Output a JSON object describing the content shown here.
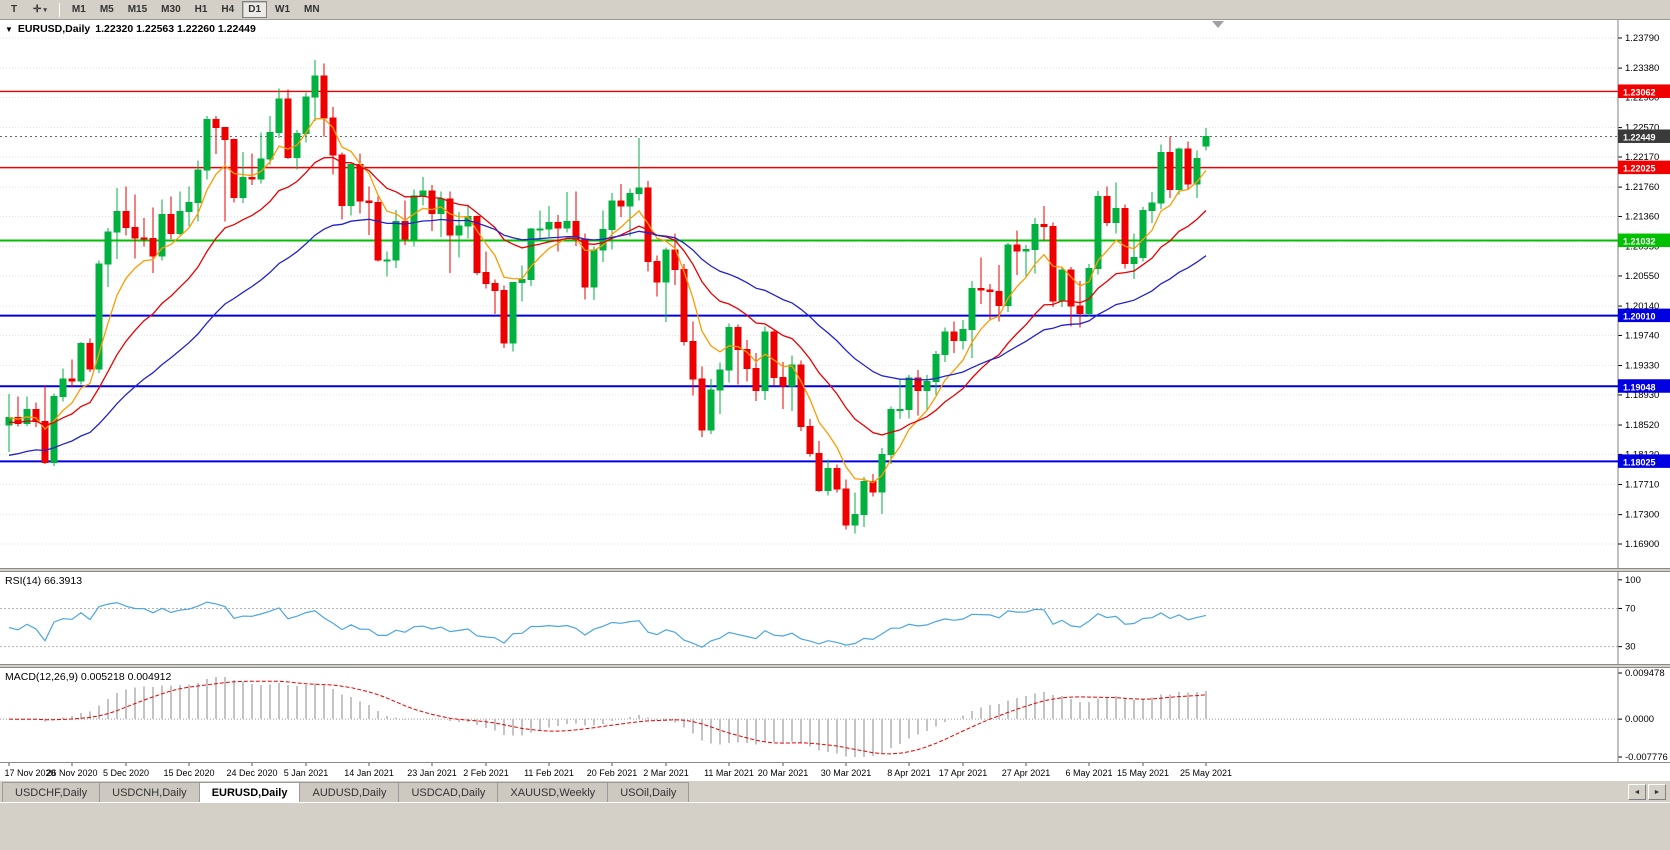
{
  "toolbar": {
    "t_button_label": "T",
    "timeframes": [
      "M1",
      "M5",
      "M15",
      "M30",
      "H1",
      "H4",
      "D1",
      "W1",
      "MN"
    ],
    "active_timeframe": "D1"
  },
  "icons": {
    "symbol_dropdown": "▼",
    "crosshair_tool": "✛",
    "tool_dropdown": "▾",
    "tab_scroll_left": "◄",
    "tab_scroll_right": "►"
  },
  "header": {
    "symbol": "EURUSD,Daily",
    "ohlc": "1.22320 1.22563 1.22260 1.22449"
  },
  "chart_data": {
    "type": "candlestick",
    "symbol": "EURUSD",
    "timeframe": "Daily",
    "colors": {
      "up": "#00b140",
      "down": "#ee0000",
      "ma_fast": "#ff9a00",
      "ma_mid": "#e80000",
      "ma_slow": "#2222cc",
      "rsi": "#4da6e0",
      "macd_hist": "#c4c4c4",
      "macd_signal": "#e80000",
      "grid": "#e2e2e2",
      "axis_border": "#808080"
    },
    "price_ticks": [
      "1.23790",
      "1.23380",
      "1.22980",
      "1.22570",
      "1.22170",
      "1.21760",
      "1.21360",
      "1.20950",
      "1.20550",
      "1.20140",
      "1.19740",
      "1.19330",
      "1.18930",
      "1.18520",
      "1.18120",
      "1.17710",
      "1.17300",
      "1.16900"
    ],
    "date_labels": [
      "17 Nov 2020",
      "26 Nov 2020",
      "5 Dec 2020",
      "15 Dec 2020",
      "24 Dec 2020",
      "5 Jan 2021",
      "14 Jan 2021",
      "23 Jan 2021",
      "2 Feb 2021",
      "11 Feb 2021",
      "20 Feb 2021",
      "2 Mar 2021",
      "11 Mar 2021",
      "20 Mar 2021",
      "30 Mar 2021",
      "8 Apr 2021",
      "17 Apr 2021",
      "27 Apr 2021",
      "6 May 2021",
      "15 May 2021",
      "25 May 2021"
    ],
    "hlines": [
      {
        "price": 1.23062,
        "label": "1.23062",
        "color": "#f00000",
        "width": 1.4
      },
      {
        "price": 1.22025,
        "label": "1.22025",
        "color": "#f00000",
        "width": 1.4
      },
      {
        "price": 1.21032,
        "label": "1.21032",
        "color": "#00c000",
        "width": 2
      },
      {
        "price": 1.2001,
        "label": "1.20010",
        "color": "#0000e0",
        "width": 2
      },
      {
        "price": 1.19048,
        "label": "1.19048",
        "color": "#0000e0",
        "width": 2
      },
      {
        "price": 1.18025,
        "label": "1.18025",
        "color": "#0000e0",
        "width": 2
      }
    ],
    "current_price": {
      "value": 1.22449,
      "label": "1.22449",
      "badge_color": "#3a3a3a"
    },
    "moving_averages": [
      {
        "name": "ma-fast",
        "period": 7,
        "color": "#ff9a00",
        "seed": 1.1862
      },
      {
        "name": "ma-mid",
        "period": 18,
        "color": "#e80000",
        "seed": 1.1855
      },
      {
        "name": "ma-slow",
        "period": 38,
        "color": "#2222cc",
        "seed": 1.1808
      }
    ],
    "rsi": {
      "label": "RSI(14) 66.3913",
      "period": 14,
      "levels": [
        "100",
        "70",
        "30"
      ],
      "level_values": [
        100,
        70,
        30
      ],
      "color": "#4da6e0"
    },
    "macd": {
      "label": "MACD(12,26,9) 0.005218 0.004912",
      "fast": 12,
      "slow": 26,
      "signal": 9,
      "axis_labels": [
        "0.009478",
        "0.0000",
        "-0.007776"
      ],
      "axis_values": [
        0.009478,
        0,
        -0.007776
      ]
    },
    "candles": [
      [
        1.1852,
        1.1894,
        1.1815,
        1.1862
      ],
      [
        1.1862,
        1.1891,
        1.185,
        1.1854
      ],
      [
        1.1854,
        1.1891,
        1.1851,
        1.1873
      ],
      [
        1.1873,
        1.1883,
        1.1849,
        1.1857
      ],
      [
        1.1857,
        1.1906,
        1.1799,
        1.1801
      ],
      [
        1.1801,
        1.1895,
        1.1796,
        1.1891
      ],
      [
        1.1891,
        1.1929,
        1.1884,
        1.1915
      ],
      [
        1.1915,
        1.1941,
        1.1903,
        1.1912
      ],
      [
        1.1912,
        1.1965,
        1.1907,
        1.1963
      ],
      [
        1.1963,
        1.197,
        1.1924,
        1.1928
      ],
      [
        1.1928,
        1.2076,
        1.1923,
        1.2071
      ],
      [
        1.2071,
        1.212,
        1.204,
        1.2115
      ],
      [
        1.2115,
        1.2175,
        1.2078,
        1.2143
      ],
      [
        1.2143,
        1.2177,
        1.211,
        1.2121
      ],
      [
        1.2121,
        1.2166,
        1.2079,
        1.2107
      ],
      [
        1.2107,
        1.2134,
        1.2095,
        1.2106
      ],
      [
        1.2106,
        1.2148,
        1.2059,
        1.2082
      ],
      [
        1.2082,
        1.2159,
        1.2076,
        1.2139
      ],
      [
        1.2139,
        1.2163,
        1.2105,
        1.2113
      ],
      [
        1.2113,
        1.217,
        1.2111,
        1.2143
      ],
      [
        1.2143,
        1.2177,
        1.2123,
        1.2155
      ],
      [
        1.2155,
        1.2212,
        1.2129,
        1.2199
      ],
      [
        1.2199,
        1.2273,
        1.2186,
        1.2268
      ],
      [
        1.2268,
        1.2273,
        1.2221,
        1.2257
      ],
      [
        1.2257,
        1.2258,
        1.2129,
        1.2241
      ],
      [
        1.2241,
        1.2242,
        1.2155,
        1.2162
      ],
      [
        1.2162,
        1.2224,
        1.2154,
        1.2189
      ],
      [
        1.2189,
        1.2222,
        1.2179,
        1.2187
      ],
      [
        1.2187,
        1.225,
        1.2181,
        1.2214
      ],
      [
        1.2214,
        1.2273,
        1.2207,
        1.225
      ],
      [
        1.225,
        1.231,
        1.2243,
        1.2296
      ],
      [
        1.2296,
        1.2309,
        1.2214,
        1.2216
      ],
      [
        1.2216,
        1.2254,
        1.22,
        1.2249
      ],
      [
        1.2249,
        1.2305,
        1.2237,
        1.2299
      ],
      [
        1.2299,
        1.2349,
        1.2266,
        1.2327
      ],
      [
        1.2327,
        1.2344,
        1.2245,
        1.227
      ],
      [
        1.227,
        1.2285,
        1.2193,
        1.222
      ],
      [
        1.222,
        1.2223,
        1.2132,
        1.2151
      ],
      [
        1.2151,
        1.2208,
        1.2137,
        1.2207
      ],
      [
        1.2207,
        1.2222,
        1.214,
        1.2157
      ],
      [
        1.2157,
        1.2177,
        1.2111,
        1.2155
      ],
      [
        1.2155,
        1.2163,
        1.2075,
        1.2077
      ],
      [
        1.2077,
        1.2088,
        1.2054,
        1.2077
      ],
      [
        1.2077,
        1.2145,
        1.2066,
        1.2129
      ],
      [
        1.2129,
        1.2158,
        1.2097,
        1.2105
      ],
      [
        1.2105,
        1.2173,
        1.2095,
        1.2164
      ],
      [
        1.2164,
        1.219,
        1.2151,
        1.2171
      ],
      [
        1.2171,
        1.2179,
        1.2116,
        1.214
      ],
      [
        1.214,
        1.217,
        1.2108,
        1.216
      ],
      [
        1.216,
        1.217,
        1.2059,
        1.2111
      ],
      [
        1.2111,
        1.2142,
        1.208,
        1.2123
      ],
      [
        1.2123,
        1.2152,
        1.2106,
        1.2136
      ],
      [
        1.2136,
        1.2137,
        1.2056,
        1.206
      ],
      [
        1.206,
        1.2088,
        1.2038,
        1.2045
      ],
      [
        1.2045,
        1.205,
        1.2003,
        1.2035
      ],
      [
        1.2035,
        1.2042,
        1.1957,
        1.1964
      ],
      [
        1.1964,
        1.2046,
        1.1952,
        1.2046
      ],
      [
        1.2046,
        1.2069,
        1.202,
        1.205
      ],
      [
        1.205,
        1.212,
        1.2041,
        1.2119
      ],
      [
        1.2119,
        1.2144,
        1.2102,
        1.2119
      ],
      [
        1.2119,
        1.215,
        1.2108,
        1.2128
      ],
      [
        1.2128,
        1.2138,
        1.2088,
        1.212
      ],
      [
        1.212,
        1.2169,
        1.2114,
        1.2129
      ],
      [
        1.2129,
        1.217,
        1.2096,
        1.2105
      ],
      [
        1.2105,
        1.2113,
        1.2023,
        1.204
      ],
      [
        1.204,
        1.2095,
        1.2022,
        1.209
      ],
      [
        1.209,
        1.2144,
        1.2074,
        1.2118
      ],
      [
        1.2118,
        1.2168,
        1.2091,
        1.2157
      ],
      [
        1.2157,
        1.218,
        1.2135,
        1.215
      ],
      [
        1.215,
        1.2174,
        1.2109,
        1.2167
      ],
      [
        1.2167,
        1.2243,
        1.2158,
        1.2175
      ],
      [
        1.2175,
        1.2184,
        1.2061,
        1.2075
      ],
      [
        1.2075,
        1.2083,
        1.2027,
        1.2047
      ],
      [
        1.2047,
        1.2094,
        1.1992,
        1.209
      ],
      [
        1.209,
        1.2113,
        1.2043,
        1.2064
      ],
      [
        1.2064,
        1.2071,
        1.196,
        1.1966
      ],
      [
        1.1966,
        1.1993,
        1.1892,
        1.1915
      ],
      [
        1.1915,
        1.1932,
        1.1836,
        1.1845
      ],
      [
        1.1845,
        1.1915,
        1.184,
        1.19
      ],
      [
        1.19,
        1.1937,
        1.1867,
        1.1927
      ],
      [
        1.1927,
        1.199,
        1.191,
        1.1985
      ],
      [
        1.1985,
        1.1989,
        1.1907,
        1.1955
      ],
      [
        1.1955,
        1.1968,
        1.1911,
        1.1929
      ],
      [
        1.1929,
        1.195,
        1.1885,
        1.1899
      ],
      [
        1.1899,
        1.1986,
        1.1886,
        1.1979
      ],
      [
        1.1979,
        1.1982,
        1.1906,
        1.1917
      ],
      [
        1.1917,
        1.1938,
        1.1874,
        1.1905
      ],
      [
        1.1905,
        1.1947,
        1.1871,
        1.1934
      ],
      [
        1.1934,
        1.194,
        1.1844,
        1.185
      ],
      [
        1.185,
        1.186,
        1.1809,
        1.1813
      ],
      [
        1.1813,
        1.183,
        1.1761,
        1.1763
      ],
      [
        1.1763,
        1.1805,
        1.1756,
        1.1793
      ],
      [
        1.1793,
        1.1798,
        1.176,
        1.1765
      ],
      [
        1.1765,
        1.1778,
        1.171,
        1.1716
      ],
      [
        1.1716,
        1.176,
        1.1704,
        1.173
      ],
      [
        1.173,
        1.1781,
        1.1713,
        1.1775
      ],
      [
        1.1775,
        1.1785,
        1.1755,
        1.1761
      ],
      [
        1.1761,
        1.1821,
        1.1731,
        1.1812
      ],
      [
        1.1812,
        1.1877,
        1.1799,
        1.1873
      ],
      [
        1.1873,
        1.1915,
        1.186,
        1.1873
      ],
      [
        1.1873,
        1.192,
        1.1861,
        1.1916
      ],
      [
        1.1916,
        1.1927,
        1.1865,
        1.1899
      ],
      [
        1.1899,
        1.192,
        1.1872,
        1.1911
      ],
      [
        1.1911,
        1.1953,
        1.1893,
        1.1948
      ],
      [
        1.1948,
        1.1985,
        1.1938,
        1.1979
      ],
      [
        1.1979,
        1.1993,
        1.195,
        1.1967
      ],
      [
        1.1967,
        1.1995,
        1.1955,
        1.1982
      ],
      [
        1.1982,
        1.2048,
        1.1943,
        1.2038
      ],
      [
        1.2038,
        1.208,
        1.2017,
        1.2036
      ],
      [
        1.2036,
        1.2044,
        1.1994,
        1.2034
      ],
      [
        1.2034,
        1.207,
        1.1993,
        1.2015
      ],
      [
        1.2015,
        1.21,
        1.2006,
        1.2097
      ],
      [
        1.2097,
        1.2117,
        1.2056,
        1.2089
      ],
      [
        1.2089,
        1.2097,
        1.2054,
        1.2091
      ],
      [
        1.2091,
        1.2134,
        1.2058,
        1.2125
      ],
      [
        1.2125,
        1.215,
        1.2103,
        1.2122
      ],
      [
        1.2122,
        1.2128,
        1.2013,
        1.2021
      ],
      [
        1.2021,
        1.2068,
        1.2013,
        1.2063
      ],
      [
        1.2063,
        1.2067,
        1.1986,
        1.2014
      ],
      [
        1.2014,
        1.2048,
        1.1985,
        1.2004
      ],
      [
        1.2004,
        1.2071,
        1.2,
        1.2065
      ],
      [
        1.2065,
        1.2171,
        1.2057,
        1.2163
      ],
      [
        1.2163,
        1.2177,
        1.2123,
        1.2128
      ],
      [
        1.2128,
        1.2182,
        1.2113,
        1.2147
      ],
      [
        1.2147,
        1.2152,
        1.2065,
        1.2072
      ],
      [
        1.2072,
        1.2113,
        1.2051,
        1.208
      ],
      [
        1.208,
        1.2149,
        1.2075,
        1.2144
      ],
      [
        1.2144,
        1.2169,
        1.2127,
        1.2154
      ],
      [
        1.2154,
        1.2234,
        1.2146,
        1.2223
      ],
      [
        1.2223,
        1.2245,
        1.2161,
        1.2173
      ],
      [
        1.2173,
        1.223,
        1.2166,
        1.2228
      ],
      [
        1.2228,
        1.2238,
        1.2173,
        1.218
      ],
      [
        1.218,
        1.2226,
        1.2161,
        1.2215
      ],
      [
        1.2232,
        1.22563,
        1.2226,
        1.22449
      ]
    ]
  },
  "tabs": [
    {
      "label": "USDCHF,Daily",
      "active": false
    },
    {
      "label": "USDCNH,Daily",
      "active": false
    },
    {
      "label": "EURUSD,Daily",
      "active": true
    },
    {
      "label": "AUDUSD,Daily",
      "active": false
    },
    {
      "label": "USDCAD,Daily",
      "active": false
    },
    {
      "label": "XAUUSD,Weekly",
      "active": false
    },
    {
      "label": "USOil,Daily",
      "active": false
    }
  ]
}
